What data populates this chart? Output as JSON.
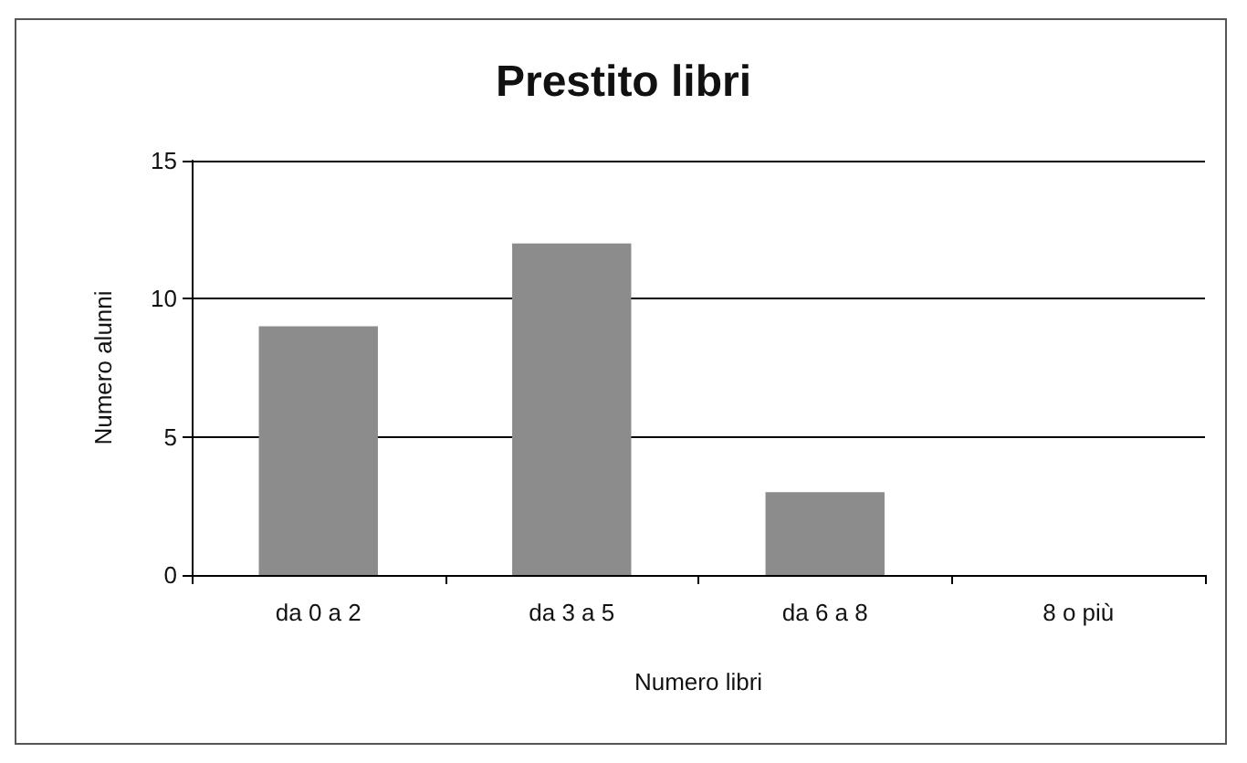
{
  "chart_data": {
    "type": "bar",
    "title": "Prestito libri",
    "categories": [
      "da 0 a 2",
      "da 3 a 5",
      "da 6 a 8",
      "8 o più"
    ],
    "values": [
      9,
      12,
      3,
      0
    ],
    "color": "#8c8c8c",
    "xlabel": "Numero libri",
    "ylabel": "Numero alunni",
    "ylim": [
      0,
      15
    ],
    "yticks": [
      0,
      5,
      10,
      15
    ],
    "grid": "y"
  }
}
